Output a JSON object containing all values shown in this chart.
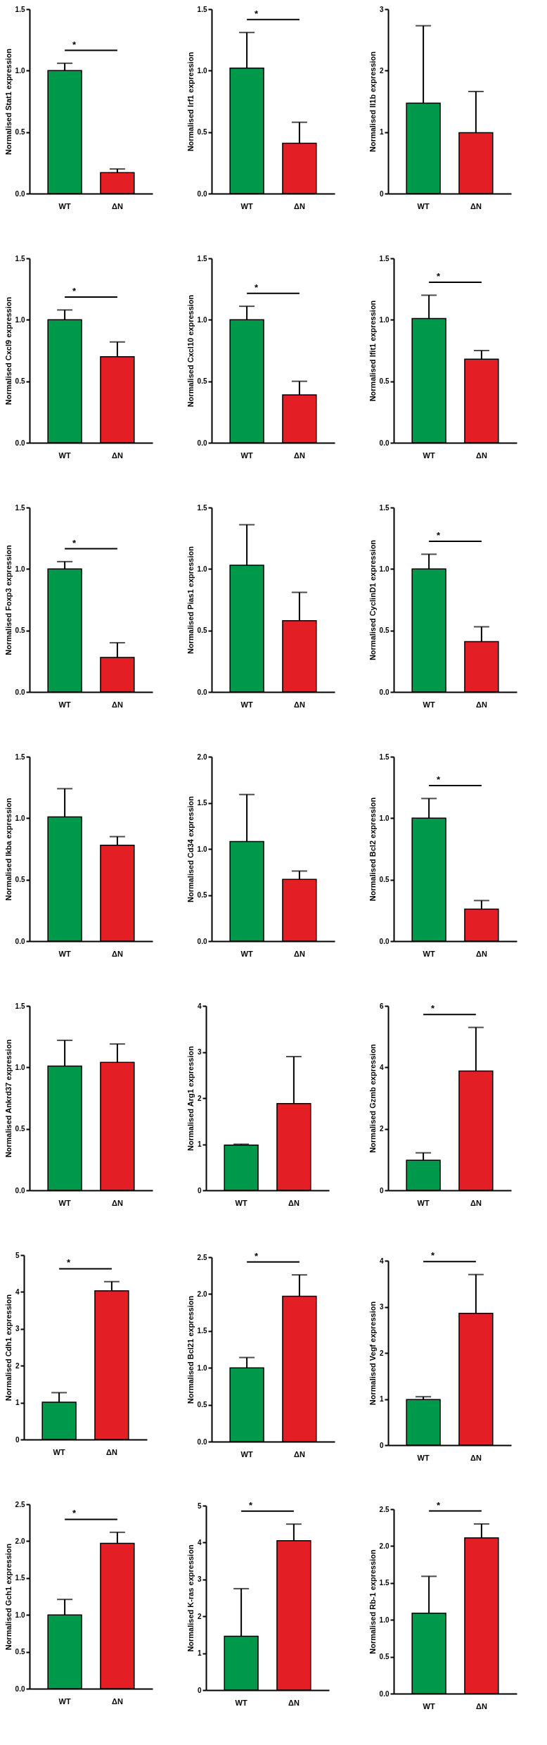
{
  "chart_data": [
    {
      "type": "bar",
      "ylabel": "Normalised Stat1 expression",
      "categories": [
        "WT",
        "ΔN"
      ],
      "values": [
        1.0,
        0.17
      ],
      "colors": [
        "#00984a",
        "#e31e24"
      ],
      "errors": [
        [
          1.0,
          1.06
        ],
        [
          0.17,
          0.2
        ]
      ],
      "ylim": [
        0,
        1.5
      ],
      "yticks": [
        {
          "value": 0,
          "label": "0.0"
        },
        {
          "value": 0.5,
          "label": "0.5"
        },
        {
          "value": 1,
          "label": "1.0"
        },
        {
          "value": 1.5,
          "label": "1.5"
        }
      ],
      "annotations": [
        "*"
      ]
    },
    {
      "type": "bar",
      "ylabel": "Normalised Irf1 expression",
      "categories": [
        "WT",
        "ΔN"
      ],
      "values": [
        1.02,
        0.41
      ],
      "colors": [
        "#00984a",
        "#e31e24"
      ],
      "errors": [
        [
          1.02,
          1.31
        ],
        [
          0.41,
          0.58
        ]
      ],
      "ylim": [
        0,
        1.5
      ],
      "yticks": [
        {
          "value": 0,
          "label": "0.0"
        },
        {
          "value": 0.5,
          "label": "0.5"
        },
        {
          "value": 1,
          "label": "1.0"
        },
        {
          "value": 1.5,
          "label": "1.5"
        }
      ],
      "annotations": [
        "*"
      ]
    },
    {
      "type": "bar",
      "ylabel": "Normalised Il1b expression",
      "categories": [
        "WT",
        "ΔN"
      ],
      "values": [
        1.47,
        0.99
      ],
      "colors": [
        "#00984a",
        "#e31e24"
      ],
      "errors": [
        [
          1.47,
          2.73
        ],
        [
          0.99,
          1.66
        ]
      ],
      "ylim": [
        0,
        3
      ],
      "yticks": [
        0,
        1,
        2,
        3
      ]
    },
    {
      "type": "bar",
      "ylabel": "Normalised Cxcl9 expression",
      "categories": [
        "WT",
        "ΔN"
      ],
      "values": [
        1.0,
        0.7
      ],
      "colors": [
        "#00984a",
        "#e31e24"
      ],
      "errors": [
        [
          1.0,
          1.08
        ],
        [
          0.7,
          0.82
        ]
      ],
      "ylim": [
        0,
        1.5
      ],
      "yticks": [
        {
          "value": 0,
          "label": "0.0"
        },
        {
          "value": 0.5,
          "label": "0.5"
        },
        {
          "value": 1,
          "label": "1.0"
        },
        {
          "value": 1.5,
          "label": "1.5"
        }
      ],
      "annotations": [
        "*"
      ]
    },
    {
      "type": "bar",
      "ylabel": "Normalised Cxcl10 expression",
      "categories": [
        "WT",
        "ΔN"
      ],
      "values": [
        1.0,
        0.39
      ],
      "colors": [
        "#00984a",
        "#e31e24"
      ],
      "errors": [
        [
          1.0,
          1.11
        ],
        [
          0.39,
          0.5
        ]
      ],
      "ylim": [
        0,
        1.5
      ],
      "yticks": [
        {
          "value": 0,
          "label": "0.0"
        },
        {
          "value": 0.5,
          "label": "0.5"
        },
        {
          "value": 1,
          "label": "1.0"
        },
        {
          "value": 1.5,
          "label": "1.5"
        }
      ],
      "annotations": [
        "*"
      ]
    },
    {
      "type": "bar",
      "ylabel": "Normalised Ifit1 expression",
      "categories": [
        "WT",
        "ΔN"
      ],
      "values": [
        1.01,
        0.68
      ],
      "colors": [
        "#00984a",
        "#e31e24"
      ],
      "errors": [
        [
          1.01,
          1.2
        ],
        [
          0.68,
          0.75
        ]
      ],
      "ylim": [
        0,
        1.5
      ],
      "yticks": [
        {
          "value": 0,
          "label": "0.0"
        },
        {
          "value": 0.5,
          "label": "0.5"
        },
        {
          "value": 1,
          "label": "1.0"
        },
        {
          "value": 1.5,
          "label": "1.5"
        }
      ],
      "annotations": [
        "*"
      ]
    },
    {
      "type": "bar",
      "ylabel": "Normalised Foxp3 expression",
      "categories": [
        "WT",
        "ΔN"
      ],
      "values": [
        1.0,
        0.28
      ],
      "colors": [
        "#00984a",
        "#e31e24"
      ],
      "errors": [
        [
          1.0,
          1.06
        ],
        [
          0.28,
          0.4
        ]
      ],
      "ylim": [
        0,
        1.5
      ],
      "yticks": [
        {
          "value": 0,
          "label": "0.0"
        },
        {
          "value": 0.5,
          "label": "0.5"
        },
        {
          "value": 1,
          "label": "1.0"
        },
        {
          "value": 1.5,
          "label": "1.5"
        }
      ],
      "annotations": [
        "*"
      ]
    },
    {
      "type": "bar",
      "ylabel": "Normalised Pias1 expression",
      "categories": [
        "WT",
        "ΔN"
      ],
      "values": [
        1.03,
        0.58
      ],
      "colors": [
        "#00984a",
        "#e31e24"
      ],
      "errors": [
        [
          1.03,
          1.36
        ],
        [
          0.58,
          0.81
        ]
      ],
      "ylim": [
        0,
        1.5
      ],
      "yticks": [
        {
          "value": 0,
          "label": "0.0"
        },
        {
          "value": 0.5,
          "label": "0.5"
        },
        {
          "value": 1,
          "label": "1.0"
        },
        {
          "value": 1.5,
          "label": "1.5"
        }
      ]
    },
    {
      "type": "bar",
      "ylabel": "Normalised CyclinD1 expression",
      "categories": [
        "WT",
        "ΔN"
      ],
      "values": [
        1.0,
        0.41
      ],
      "colors": [
        "#00984a",
        "#e31e24"
      ],
      "errors": [
        [
          1.0,
          1.12
        ],
        [
          0.41,
          0.53
        ]
      ],
      "ylim": [
        0,
        1.5
      ],
      "yticks": [
        {
          "value": 0,
          "label": "0.0"
        },
        {
          "value": 0.5,
          "label": "0.5"
        },
        {
          "value": 1,
          "label": "1.0"
        },
        {
          "value": 1.5,
          "label": "1.5"
        }
      ],
      "annotations": [
        "*"
      ]
    },
    {
      "type": "bar",
      "ylabel": "Normalised Ikba expression",
      "categories": [
        "WT",
        "ΔN"
      ],
      "values": [
        1.01,
        0.78
      ],
      "colors": [
        "#00984a",
        "#e31e24"
      ],
      "errors": [
        [
          1.01,
          1.24
        ],
        [
          0.78,
          0.85
        ]
      ],
      "ylim": [
        0,
        1.5
      ],
      "yticks": [
        {
          "value": 0,
          "label": "0.0"
        },
        {
          "value": 0.5,
          "label": "0.5"
        },
        {
          "value": 1,
          "label": "1.0"
        },
        {
          "value": 1.5,
          "label": "1.5"
        }
      ]
    },
    {
      "type": "bar",
      "ylabel": "Normalised Cd34 expression",
      "categories": [
        "WT",
        "ΔN"
      ],
      "values": [
        1.08,
        0.67
      ],
      "colors": [
        "#00984a",
        "#e31e24"
      ],
      "errors": [
        [
          1.08,
          1.59
        ],
        [
          0.67,
          0.76
        ]
      ],
      "ylim": [
        0,
        2
      ],
      "yticks": [
        {
          "value": 0,
          "label": "0.0"
        },
        {
          "value": 0.5,
          "label": "0.5"
        },
        {
          "value": 1,
          "label": "1.0"
        },
        {
          "value": 1.5,
          "label": "1.5"
        },
        {
          "value": 2,
          "label": "2.0"
        }
      ]
    },
    {
      "type": "bar",
      "ylabel": "Normalised Bcl2 expression",
      "categories": [
        "WT",
        "ΔN"
      ],
      "values": [
        1.0,
        0.26
      ],
      "colors": [
        "#00984a",
        "#e31e24"
      ],
      "errors": [
        [
          1.0,
          1.16
        ],
        [
          0.26,
          0.33
        ]
      ],
      "ylim": [
        0,
        1.5
      ],
      "yticks": [
        {
          "value": 0,
          "label": "0.0"
        },
        {
          "value": 0.5,
          "label": "0.5"
        },
        {
          "value": 1,
          "label": "1.0"
        },
        {
          "value": 1.5,
          "label": "1.5"
        }
      ],
      "annotations": [
        "*"
      ]
    },
    {
      "type": "bar",
      "ylabel": "Normalised Ankrd37 expression",
      "categories": [
        "WT",
        "ΔN"
      ],
      "values": [
        1.01,
        1.04
      ],
      "colors": [
        "#00984a",
        "#e31e24"
      ],
      "errors": [
        [
          1.01,
          1.22
        ],
        [
          1.04,
          1.19
        ]
      ],
      "ylim": [
        0,
        1.5
      ],
      "yticks": [
        {
          "value": 0,
          "label": "0.0"
        },
        {
          "value": 0.5,
          "label": "0.5"
        },
        {
          "value": 1,
          "label": "1.0"
        },
        {
          "value": 1.5,
          "label": "1.5"
        }
      ]
    },
    {
      "type": "bar",
      "ylabel": "Normalised Arg1 expression",
      "categories": [
        "WT",
        "ΔN"
      ],
      "values": [
        0.98,
        1.88
      ],
      "colors": [
        "#00984a",
        "#e31e24"
      ],
      "errors": [
        [
          0.98,
          1.0
        ],
        [
          1.88,
          2.9
        ]
      ],
      "ylim": [
        0,
        4
      ],
      "yticks": [
        0,
        1,
        2,
        3,
        4
      ]
    },
    {
      "type": "bar",
      "ylabel": "Normalised Gzmb expression",
      "categories": [
        "WT",
        "ΔN"
      ],
      "values": [
        0.98,
        3.88
      ],
      "colors": [
        "#00984a",
        "#e31e24"
      ],
      "errors": [
        [
          0.98,
          1.22
        ],
        [
          3.88,
          5.3
        ]
      ],
      "ylim": [
        0,
        6
      ],
      "yticks": [
        0,
        2,
        4,
        6
      ],
      "annotations": [
        "*"
      ]
    },
    {
      "type": "bar",
      "ylabel": "Normalised Cdh1 expression",
      "categories": [
        "WT",
        "ΔN"
      ],
      "values": [
        1.01,
        4.03
      ],
      "colors": [
        "#00984a",
        "#e31e24"
      ],
      "errors": [
        [
          1.01,
          1.27
        ],
        [
          4.03,
          4.28
        ]
      ],
      "ylim": [
        0,
        5
      ],
      "yticks": [
        0,
        1,
        2,
        3,
        4,
        5
      ],
      "annotations": [
        "*"
      ]
    },
    {
      "type": "bar",
      "ylabel": "Normalised Bcl21 expression",
      "categories": [
        "WT",
        "ΔN"
      ],
      "values": [
        1.0,
        1.97
      ],
      "colors": [
        "#00984a",
        "#e31e24"
      ],
      "errors": [
        [
          1.0,
          1.14
        ],
        [
          1.97,
          2.26
        ]
      ],
      "ylim": [
        0,
        2.5
      ],
      "yticks": [
        {
          "value": 0,
          "label": "0.0"
        },
        {
          "value": 0.5,
          "label": "0.5"
        },
        {
          "value": 1,
          "label": "1.0"
        },
        {
          "value": 1.5,
          "label": "1.5"
        },
        {
          "value": 2,
          "label": "2.0"
        },
        {
          "value": 2.5,
          "label": "2.5"
        }
      ],
      "annotations": [
        "*"
      ]
    },
    {
      "type": "bar",
      "ylabel": "Normalised Vegf expression",
      "categories": [
        "WT",
        "ΔN"
      ],
      "values": [
        0.99,
        2.86
      ],
      "colors": [
        "#00984a",
        "#e31e24"
      ],
      "errors": [
        [
          0.99,
          1.05
        ],
        [
          2.86,
          3.7
        ]
      ],
      "ylim": [
        0,
        4
      ],
      "yticks": [
        0,
        1,
        2,
        3,
        4
      ],
      "annotations": [
        "*"
      ]
    },
    {
      "type": "bar",
      "ylabel": "Normalised Gch1 expression",
      "categories": [
        "WT",
        "ΔN"
      ],
      "values": [
        1.0,
        1.97
      ],
      "colors": [
        "#00984a",
        "#e31e24"
      ],
      "errors": [
        [
          1.0,
          1.21
        ],
        [
          1.97,
          2.12
        ]
      ],
      "ylim": [
        0,
        2.5
      ],
      "yticks": [
        {
          "value": 0,
          "label": "0.0"
        },
        {
          "value": 0.5,
          "label": "0.5"
        },
        {
          "value": 1,
          "label": "1.0"
        },
        {
          "value": 1.5,
          "label": "1.5"
        },
        {
          "value": 2,
          "label": "2.0"
        },
        {
          "value": 2.5,
          "label": "2.5"
        }
      ],
      "annotations": [
        "*"
      ]
    },
    {
      "type": "bar",
      "ylabel": "Normalised K-ras expression",
      "categories": [
        "WT",
        "ΔN"
      ],
      "values": [
        1.46,
        4.05
      ],
      "colors": [
        "#00984a",
        "#e31e24"
      ],
      "errors": [
        [
          1.46,
          2.75
        ],
        [
          4.05,
          4.5
        ]
      ],
      "ylim": [
        0,
        5
      ],
      "yticks": [
        0,
        1,
        2,
        3,
        4,
        5
      ],
      "annotations": [
        "*"
      ]
    },
    {
      "type": "bar",
      "ylabel": "Normalised Rb-1 expression",
      "categories": [
        "WT",
        "ΔN"
      ],
      "values": [
        1.09,
        2.11
      ],
      "colors": [
        "#00984a",
        "#e31e24"
      ],
      "errors": [
        [
          1.09,
          1.59
        ],
        [
          2.11,
          2.3
        ]
      ],
      "ylim": [
        0,
        2.5
      ],
      "yticks": [
        {
          "value": 0,
          "label": "0.0"
        },
        {
          "value": 0.5,
          "label": "0.5"
        },
        {
          "value": 1,
          "label": "1.0"
        },
        {
          "value": 1.5,
          "label": "1.5"
        },
        {
          "value": 2,
          "label": "2.0"
        },
        {
          "value": 2.5,
          "label": "2.5"
        }
      ],
      "annotations": [
        "*"
      ]
    }
  ]
}
